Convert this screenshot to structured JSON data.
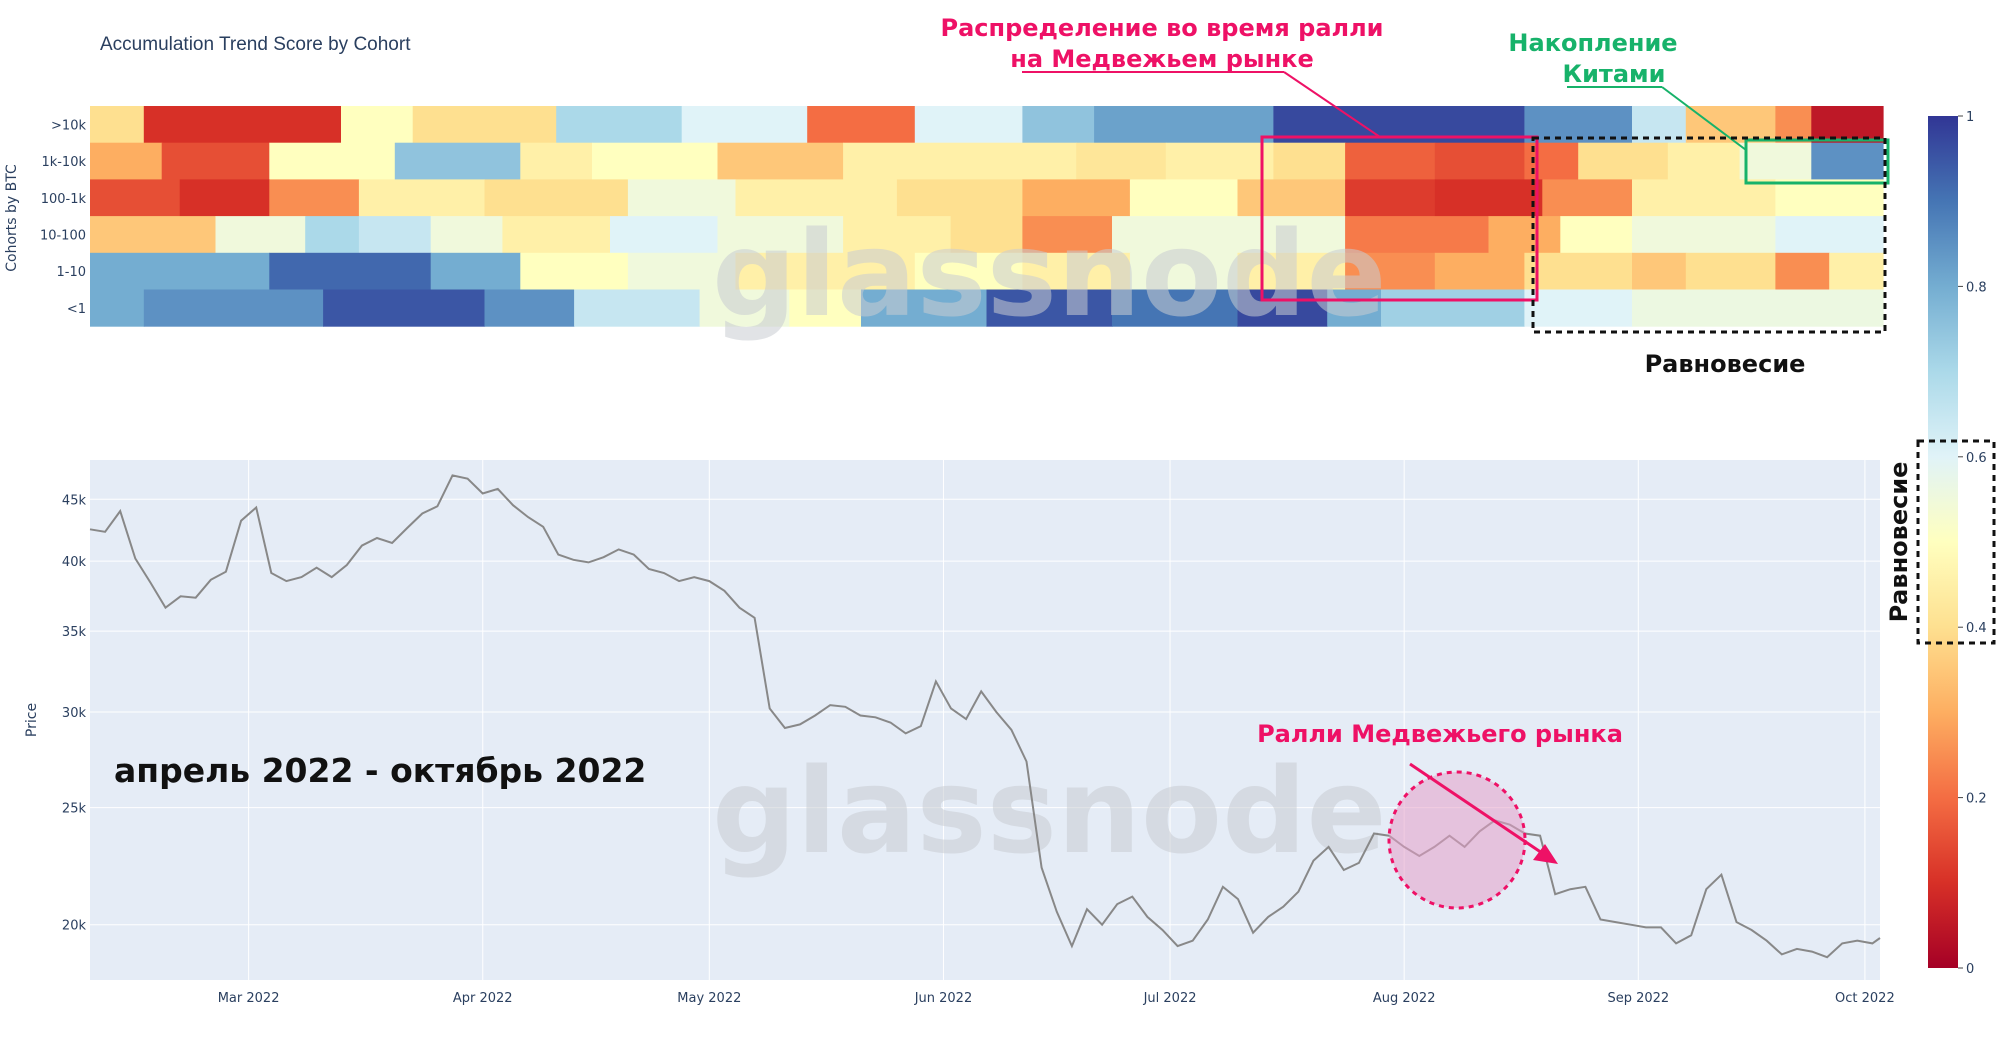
{
  "colors": {
    "plot_bg": "#e5ecf6",
    "price_line": "#888888",
    "accent_red": "#ee1166",
    "accent_green": "#17b26a",
    "colorscale": [
      "#a50026",
      "#d73027",
      "#f46d43",
      "#fdae61",
      "#fee090",
      "#ffffbf",
      "#e0f3f8",
      "#abd9e9",
      "#74add1",
      "#4575b4",
      "#313695"
    ]
  },
  "watermark": "glassnode",
  "chart_data": [
    {
      "type": "heatmap",
      "title": "Accumulation Trend Score by Cohort",
      "ylabel": "Cohorts by BTC",
      "rows": [
        ">10k",
        "1k-10k",
        "100-1k",
        "10-100",
        "1-10",
        "<1"
      ],
      "colorbar": {
        "range": [
          0,
          1
        ],
        "ticks": [
          "0",
          "0.2",
          "0.4",
          "0.6",
          "0.8",
          "1"
        ]
      },
      "x_range": [
        "2022-02-08",
        "2022-10-03"
      ],
      "row_segments": [
        [
          [
            0.0,
            0.03,
            0.4
          ],
          [
            0.03,
            0.14,
            0.1
          ],
          [
            0.14,
            0.18,
            0.5
          ],
          [
            0.18,
            0.26,
            0.4
          ],
          [
            0.26,
            0.33,
            0.7
          ],
          [
            0.33,
            0.4,
            0.6
          ],
          [
            0.4,
            0.46,
            0.2
          ],
          [
            0.46,
            0.52,
            0.6
          ],
          [
            0.52,
            0.56,
            0.75
          ],
          [
            0.56,
            0.66,
            0.82
          ],
          [
            0.66,
            0.8,
            0.97
          ],
          [
            0.8,
            0.86,
            0.85
          ],
          [
            0.86,
            0.89,
            0.65
          ],
          [
            0.89,
            0.94,
            0.35
          ],
          [
            0.94,
            0.96,
            0.25
          ],
          [
            0.96,
            1.0,
            0.05
          ]
        ],
        [
          [
            0.0,
            0.04,
            0.3
          ],
          [
            0.04,
            0.1,
            0.15
          ],
          [
            0.1,
            0.17,
            0.5
          ],
          [
            0.17,
            0.24,
            0.75
          ],
          [
            0.24,
            0.28,
            0.45
          ],
          [
            0.28,
            0.35,
            0.5
          ],
          [
            0.35,
            0.42,
            0.35
          ],
          [
            0.42,
            0.55,
            0.45
          ],
          [
            0.55,
            0.6,
            0.42
          ],
          [
            0.6,
            0.66,
            0.45
          ],
          [
            0.66,
            0.7,
            0.4
          ],
          [
            0.7,
            0.75,
            0.18
          ],
          [
            0.75,
            0.8,
            0.15
          ],
          [
            0.8,
            0.83,
            0.2
          ],
          [
            0.83,
            0.88,
            0.4
          ],
          [
            0.88,
            0.92,
            0.45
          ],
          [
            0.92,
            0.96,
            0.55
          ],
          [
            0.96,
            1.0,
            0.85
          ]
        ],
        [
          [
            0.0,
            0.05,
            0.15
          ],
          [
            0.05,
            0.1,
            0.1
          ],
          [
            0.1,
            0.15,
            0.25
          ],
          [
            0.15,
            0.22,
            0.45
          ],
          [
            0.22,
            0.3,
            0.4
          ],
          [
            0.3,
            0.36,
            0.55
          ],
          [
            0.36,
            0.45,
            0.45
          ],
          [
            0.45,
            0.52,
            0.4
          ],
          [
            0.52,
            0.58,
            0.3
          ],
          [
            0.58,
            0.64,
            0.5
          ],
          [
            0.64,
            0.7,
            0.35
          ],
          [
            0.7,
            0.75,
            0.12
          ],
          [
            0.75,
            0.81,
            0.1
          ],
          [
            0.81,
            0.86,
            0.25
          ],
          [
            0.86,
            0.94,
            0.45
          ],
          [
            0.94,
            1.0,
            0.5
          ]
        ],
        [
          [
            0.0,
            0.07,
            0.35
          ],
          [
            0.07,
            0.12,
            0.55
          ],
          [
            0.12,
            0.15,
            0.7
          ],
          [
            0.15,
            0.19,
            0.65
          ],
          [
            0.19,
            0.23,
            0.55
          ],
          [
            0.23,
            0.29,
            0.45
          ],
          [
            0.29,
            0.35,
            0.6
          ],
          [
            0.35,
            0.42,
            0.55
          ],
          [
            0.42,
            0.48,
            0.45
          ],
          [
            0.48,
            0.52,
            0.4
          ],
          [
            0.52,
            0.57,
            0.25
          ],
          [
            0.57,
            0.64,
            0.55
          ],
          [
            0.64,
            0.7,
            0.55
          ],
          [
            0.7,
            0.78,
            0.22
          ],
          [
            0.78,
            0.82,
            0.3
          ],
          [
            0.82,
            0.86,
            0.5
          ],
          [
            0.86,
            0.94,
            0.55
          ],
          [
            0.94,
            1.0,
            0.6
          ]
        ],
        [
          [
            0.0,
            0.1,
            0.8
          ],
          [
            0.1,
            0.19,
            0.92
          ],
          [
            0.19,
            0.24,
            0.8
          ],
          [
            0.24,
            0.3,
            0.5
          ],
          [
            0.3,
            0.36,
            0.55
          ],
          [
            0.36,
            0.46,
            0.45
          ],
          [
            0.46,
            0.52,
            0.5
          ],
          [
            0.52,
            0.58,
            0.45
          ],
          [
            0.58,
            0.64,
            0.55
          ],
          [
            0.64,
            0.7,
            0.45
          ],
          [
            0.7,
            0.75,
            0.25
          ],
          [
            0.75,
            0.8,
            0.3
          ],
          [
            0.8,
            0.86,
            0.4
          ],
          [
            0.86,
            0.89,
            0.35
          ],
          [
            0.89,
            0.94,
            0.4
          ],
          [
            0.94,
            0.97,
            0.25
          ],
          [
            0.97,
            1.0,
            0.45
          ]
        ],
        [
          [
            0.0,
            0.03,
            0.8
          ],
          [
            0.03,
            0.13,
            0.85
          ],
          [
            0.13,
            0.22,
            0.95
          ],
          [
            0.22,
            0.27,
            0.85
          ],
          [
            0.27,
            0.34,
            0.65
          ],
          [
            0.34,
            0.39,
            0.55
          ],
          [
            0.39,
            0.43,
            0.5
          ],
          [
            0.43,
            0.5,
            0.8
          ],
          [
            0.5,
            0.57,
            0.95
          ],
          [
            0.57,
            0.64,
            0.9
          ],
          [
            0.64,
            0.69,
            0.97
          ],
          [
            0.69,
            0.72,
            0.8
          ],
          [
            0.72,
            0.8,
            0.72
          ],
          [
            0.8,
            0.86,
            0.6
          ],
          [
            0.86,
            1.0,
            0.56
          ]
        ]
      ]
    },
    {
      "type": "line",
      "ylabel": "Price",
      "y_scale": "log",
      "ylim": [
        18000,
        48500
      ],
      "yticks": [
        20000,
        25000,
        30000,
        35000,
        40000,
        45000
      ],
      "ytick_labels": [
        "20k",
        "25k",
        "30k",
        "35k",
        "40k",
        "45k"
      ],
      "x_range": [
        "2022-02-08",
        "2022-10-03"
      ],
      "xticks": [
        "2022-03-01",
        "2022-04-01",
        "2022-05-01",
        "2022-06-01",
        "2022-07-01",
        "2022-08-01",
        "2022-09-01",
        "2022-10-01"
      ],
      "xtick_labels": [
        "Mar 2022",
        "Apr 2022",
        "May 2022",
        "Jun 2022",
        "Jul 2022",
        "Aug 2022",
        "Sep 2022",
        "Oct 2022"
      ],
      "series": [
        {
          "x": [
            "2022-02-08",
            "2022-02-10",
            "2022-02-12",
            "2022-02-14",
            "2022-02-16",
            "2022-02-18",
            "2022-02-20",
            "2022-02-22",
            "2022-02-24",
            "2022-02-26",
            "2022-02-28",
            "2022-03-02",
            "2022-03-04",
            "2022-03-06",
            "2022-03-08",
            "2022-03-10",
            "2022-03-12",
            "2022-03-14",
            "2022-03-16",
            "2022-03-18",
            "2022-03-20",
            "2022-03-22",
            "2022-03-24",
            "2022-03-26",
            "2022-03-28",
            "2022-03-30",
            "2022-04-01",
            "2022-04-03",
            "2022-04-05",
            "2022-04-07",
            "2022-04-09",
            "2022-04-11",
            "2022-04-13",
            "2022-04-15",
            "2022-04-17",
            "2022-04-19",
            "2022-04-21",
            "2022-04-23",
            "2022-04-25",
            "2022-04-27",
            "2022-04-29",
            "2022-05-01",
            "2022-05-03",
            "2022-05-05",
            "2022-05-07",
            "2022-05-09",
            "2022-05-11",
            "2022-05-13",
            "2022-05-15",
            "2022-05-17",
            "2022-05-19",
            "2022-05-21",
            "2022-05-23",
            "2022-05-25",
            "2022-05-27",
            "2022-05-29",
            "2022-05-31",
            "2022-06-02",
            "2022-06-04",
            "2022-06-06",
            "2022-06-08",
            "2022-06-10",
            "2022-06-12",
            "2022-06-14",
            "2022-06-16",
            "2022-06-18",
            "2022-06-20",
            "2022-06-22",
            "2022-06-24",
            "2022-06-26",
            "2022-06-28",
            "2022-06-30",
            "2022-07-02",
            "2022-07-04",
            "2022-07-06",
            "2022-07-08",
            "2022-07-10",
            "2022-07-12",
            "2022-07-14",
            "2022-07-16",
            "2022-07-18",
            "2022-07-20",
            "2022-07-22",
            "2022-07-24",
            "2022-07-26",
            "2022-07-28",
            "2022-07-30",
            "2022-08-01",
            "2022-08-03",
            "2022-08-05",
            "2022-08-07",
            "2022-08-09",
            "2022-08-11",
            "2022-08-13",
            "2022-08-15",
            "2022-08-17",
            "2022-08-19",
            "2022-08-21",
            "2022-08-23",
            "2022-08-25",
            "2022-08-27",
            "2022-08-29",
            "2022-08-31",
            "2022-09-02",
            "2022-09-04",
            "2022-09-06",
            "2022-09-08",
            "2022-09-10",
            "2022-09-12",
            "2022-09-14",
            "2022-09-16",
            "2022-09-18",
            "2022-09-20",
            "2022-09-22",
            "2022-09-24",
            "2022-09-26",
            "2022-09-28",
            "2022-09-30",
            "2022-10-02",
            "2022-10-03"
          ],
          "values": [
            42500,
            42300,
            44000,
            40200,
            38400,
            36600,
            37400,
            37300,
            38600,
            39200,
            43200,
            44300,
            39100,
            38500,
            38800,
            39500,
            38800,
            39700,
            41200,
            41800,
            41400,
            42600,
            43800,
            44400,
            47100,
            46800,
            45500,
            45900,
            44500,
            43500,
            42700,
            40500,
            40100,
            39900,
            40300,
            40900,
            40500,
            39400,
            39100,
            38500,
            38800,
            38500,
            37800,
            36600,
            35900,
            30200,
            29100,
            29300,
            29800,
            30400,
            30300,
            29800,
            29700,
            29400,
            28800,
            29200,
            31800,
            30200,
            29600,
            31200,
            30000,
            29000,
            27300,
            22300,
            20500,
            19200,
            20600,
            20000,
            20800,
            21100,
            20300,
            19800,
            19200,
            19400,
            20200,
            21500,
            21000,
            19700,
            20300,
            20700,
            21300,
            22600,
            23200,
            22200,
            22500,
            23800,
            23700,
            23200,
            22800,
            23200,
            23700,
            23200,
            23900,
            24400,
            24200,
            23800,
            23700,
            21200,
            21400,
            21500,
            20200,
            20100,
            20000,
            19900,
            19900,
            19300,
            19600,
            21400,
            22000,
            20100,
            19800,
            19400,
            18900,
            19100,
            19000,
            18800,
            19300,
            19400,
            19300,
            19500
          ]
        }
      ]
    }
  ],
  "annotations": {
    "distribution_line1": "Распределение во время ралли",
    "distribution_line2": "на Медвежьем рынке",
    "whales_line1": "Накопление",
    "whales_line2": "Китами",
    "equilibrium_heatmap": "Равновесие",
    "equilibrium_colorbar": "Равновесие",
    "period": "апрель 2022 - октябрь 2022",
    "rally": "Ралли Медвежьего рынка"
  }
}
